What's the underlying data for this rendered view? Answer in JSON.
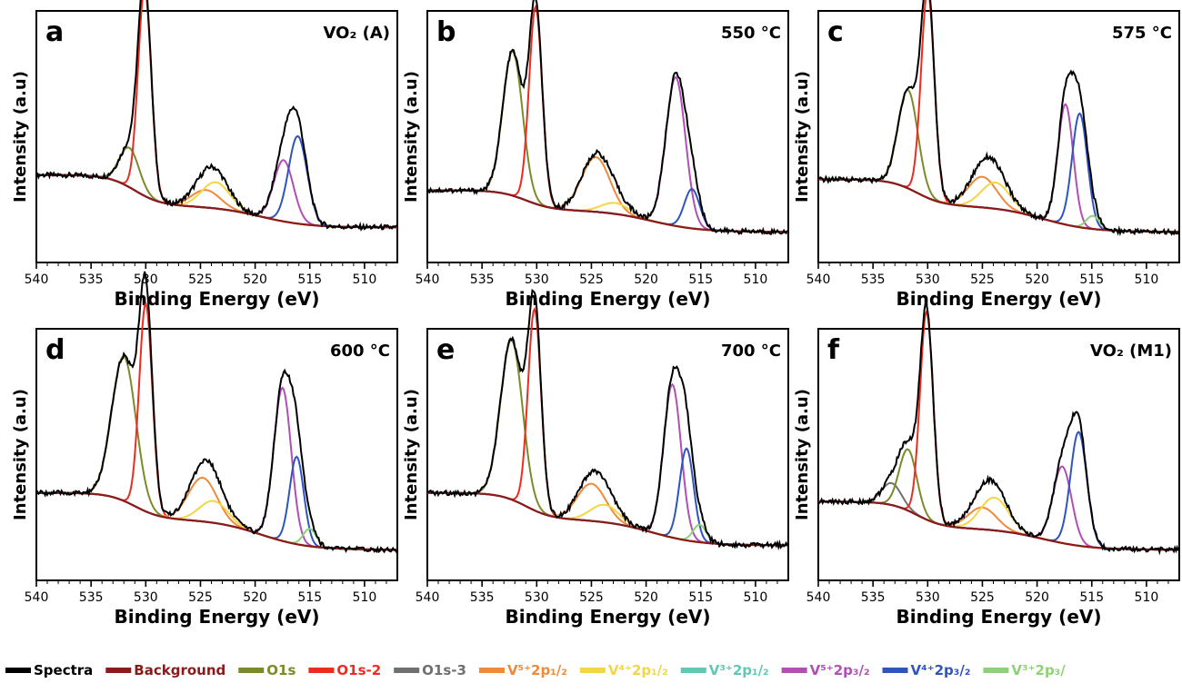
{
  "legend": [
    {
      "label": "Spectra",
      "color": "#000000"
    },
    {
      "label": "Background",
      "color": "#8b1a1a"
    },
    {
      "label": "O1s",
      "color": "#7b8b2a"
    },
    {
      "label": "O1s-2",
      "color": "#ee2b20"
    },
    {
      "label": "O1s-3",
      "color": "#707070"
    },
    {
      "label": "V⁵⁺2p₁/₂",
      "color": "#f08a3a"
    },
    {
      "label": "V⁴⁺2p₁/₂",
      "color": "#f4d544"
    },
    {
      "label": "V³⁺2p₁/₂",
      "color": "#62c8b4"
    },
    {
      "label": "V⁵⁺2p₃/₂",
      "color": "#b04fb4"
    },
    {
      "label": "V⁴⁺2p₃/₂",
      "color": "#2e54c0"
    },
    {
      "label": "V³⁺2p₃/",
      "color": "#8fd17a"
    }
  ],
  "chart_data": [
    {
      "type": "line",
      "panel_letter": "a",
      "tag": "VO₂ (A)",
      "xlabel": "Binding Energy (eV)",
      "ylabel": "Intensity (a.u)",
      "xlim": [
        540,
        507
      ],
      "xticks": [
        540,
        535,
        530,
        525,
        520,
        515,
        510
      ],
      "x_reversed": true,
      "ylim": [
        0,
        1.15
      ],
      "base": 0.4,
      "tail": 0.16,
      "bg_step": 0.1,
      "components": [
        {
          "name": "O1s",
          "center": 531.5,
          "width": 0.9,
          "height": 0.18
        },
        {
          "name": "O1s-2",
          "center": 530.1,
          "width": 0.6,
          "height": 0.95
        },
        {
          "name": "V⁵⁺2p₁/₂",
          "center": 524.5,
          "width": 1.3,
          "height": 0.08
        },
        {
          "name": "V⁴⁺2p₁/₂",
          "center": 523.6,
          "width": 1.3,
          "height": 0.12
        },
        {
          "name": "V⁵⁺2p₃/₂",
          "center": 517.4,
          "width": 0.9,
          "height": 0.28
        },
        {
          "name": "V⁴⁺2p₃/₂",
          "center": 516.1,
          "width": 0.85,
          "height": 0.4
        }
      ]
    },
    {
      "type": "line",
      "panel_letter": "b",
      "tag": "550 °C",
      "xlabel": "Binding Energy (eV)",
      "ylabel": "Intensity (a.u)",
      "xlim": [
        540,
        507
      ],
      "xticks": [
        540,
        535,
        530,
        525,
        520,
        515,
        510
      ],
      "x_reversed": true,
      "ylim": [
        0,
        1.15
      ],
      "base": 0.33,
      "tail": 0.14,
      "bg_step": 0.1,
      "components": [
        {
          "name": "O1s",
          "center": 532.2,
          "width": 0.9,
          "height": 0.66
        },
        {
          "name": "O1s-2",
          "center": 530.1,
          "width": 0.6,
          "height": 0.9
        },
        {
          "name": "V⁵⁺2p₁/₂",
          "center": 524.6,
          "width": 1.3,
          "height": 0.25
        },
        {
          "name": "V⁴⁺2p₁/₂",
          "center": 522.8,
          "width": 1.3,
          "height": 0.05
        },
        {
          "name": "V⁵⁺2p₃/₂",
          "center": 517.3,
          "width": 0.9,
          "height": 0.68
        },
        {
          "name": "V⁴⁺2p₃/₂",
          "center": 515.8,
          "width": 0.7,
          "height": 0.18
        }
      ]
    },
    {
      "type": "line",
      "panel_letter": "c",
      "tag": "575 °C",
      "xlabel": "Binding Energy (eV)",
      "ylabel": "Intensity (a.u)",
      "xlim": [
        540,
        507
      ],
      "xticks": [
        540,
        535,
        530,
        525,
        520,
        515,
        510
      ],
      "x_reversed": true,
      "ylim": [
        0,
        1.15
      ],
      "base": 0.38,
      "tail": 0.14,
      "bg_step": 0.12,
      "components": [
        {
          "name": "O1s",
          "center": 531.8,
          "width": 0.9,
          "height": 0.45
        },
        {
          "name": "O1s-2",
          "center": 530.0,
          "width": 0.6,
          "height": 0.95
        },
        {
          "name": "V⁵⁺2p₁/₂",
          "center": 525.0,
          "width": 1.3,
          "height": 0.14
        },
        {
          "name": "V⁴⁺2p₁/₂",
          "center": 523.8,
          "width": 1.3,
          "height": 0.12
        },
        {
          "name": "V⁵⁺2p₃/₂",
          "center": 517.4,
          "width": 0.7,
          "height": 0.55
        },
        {
          "name": "V⁴⁺2p₃/₂",
          "center": 516.1,
          "width": 0.7,
          "height": 0.52
        },
        {
          "name": "V³⁺2p₃/",
          "center": 514.9,
          "width": 0.6,
          "height": 0.06
        }
      ]
    },
    {
      "type": "line",
      "panel_letter": "d",
      "tag": "600 °C",
      "xlabel": "Binding Energy (eV)",
      "ylabel": "Intensity (a.u)",
      "xlim": [
        540,
        507
      ],
      "xticks": [
        540,
        535,
        530,
        525,
        520,
        515,
        510
      ],
      "x_reversed": true,
      "ylim": [
        0,
        1.15
      ],
      "base": 0.4,
      "tail": 0.14,
      "bg_step": 0.14,
      "components": [
        {
          "name": "O1s",
          "center": 532.0,
          "width": 1.1,
          "height": 0.66
        },
        {
          "name": "O1s-2",
          "center": 530.0,
          "width": 0.6,
          "height": 0.95
        },
        {
          "name": "V⁵⁺2p₁/₂",
          "center": 524.8,
          "width": 1.3,
          "height": 0.2
        },
        {
          "name": "V⁴⁺2p₁/₂",
          "center": 523.8,
          "width": 1.3,
          "height": 0.1
        },
        {
          "name": "V⁵⁺2p₃/₂",
          "center": 517.5,
          "width": 0.8,
          "height": 0.7
        },
        {
          "name": "V⁴⁺2p₃/₂",
          "center": 516.2,
          "width": 0.65,
          "height": 0.4
        },
        {
          "name": "V³⁺2p₃/",
          "center": 515.0,
          "width": 0.6,
          "height": 0.08
        }
      ]
    },
    {
      "type": "line",
      "panel_letter": "e",
      "tag": "700 °C",
      "xlabel": "Binding Energy (eV)",
      "ylabel": "Intensity (a.u)",
      "xlim": [
        540,
        507
      ],
      "xticks": [
        540,
        535,
        530,
        525,
        520,
        515,
        510
      ],
      "x_reversed": true,
      "ylim": [
        0,
        1.15
      ],
      "base": 0.4,
      "tail": 0.16,
      "bg_step": 0.12,
      "components": [
        {
          "name": "O1s",
          "center": 532.3,
          "width": 1.0,
          "height": 0.73
        },
        {
          "name": "O1s-2",
          "center": 530.2,
          "width": 0.6,
          "height": 0.92
        },
        {
          "name": "V⁵⁺2p₁/₂",
          "center": 525.0,
          "width": 1.3,
          "height": 0.17
        },
        {
          "name": "V⁴⁺2p₁/₂",
          "center": 523.8,
          "width": 1.3,
          "height": 0.08
        },
        {
          "name": "V⁵⁺2p₃/₂",
          "center": 517.6,
          "width": 0.8,
          "height": 0.7
        },
        {
          "name": "V⁴⁺2p₃/₂",
          "center": 516.3,
          "width": 0.65,
          "height": 0.42
        },
        {
          "name": "V³⁺2p₃/",
          "center": 515.1,
          "width": 0.6,
          "height": 0.08
        }
      ]
    },
    {
      "type": "line",
      "panel_letter": "f",
      "tag": "VO₂ (M1)",
      "xlabel": "Binding Energy (eV)",
      "ylabel": "Intensity (a.u)",
      "xlim": [
        540,
        507
      ],
      "xticks": [
        540,
        535,
        530,
        525,
        520,
        515,
        510
      ],
      "x_reversed": true,
      "ylim": [
        0,
        1.15
      ],
      "base": 0.36,
      "tail": 0.14,
      "bg_step": 0.1,
      "components": [
        {
          "name": "O1s-3",
          "center": 533.3,
          "width": 0.9,
          "height": 0.1
        },
        {
          "name": "O1s",
          "center": 531.8,
          "width": 0.8,
          "height": 0.28
        },
        {
          "name": "O1s-2",
          "center": 530.1,
          "width": 0.6,
          "height": 0.95
        },
        {
          "name": "V⁵⁺2p₁/₂",
          "center": 525.0,
          "width": 1.3,
          "height": 0.1
        },
        {
          "name": "V⁴⁺2p₁/₂",
          "center": 523.9,
          "width": 1.3,
          "height": 0.15
        },
        {
          "name": "V⁵⁺2p₃/₂",
          "center": 517.7,
          "width": 0.85,
          "height": 0.35
        },
        {
          "name": "V⁴⁺2p₃/₂",
          "center": 516.2,
          "width": 0.75,
          "height": 0.52
        }
      ]
    }
  ]
}
